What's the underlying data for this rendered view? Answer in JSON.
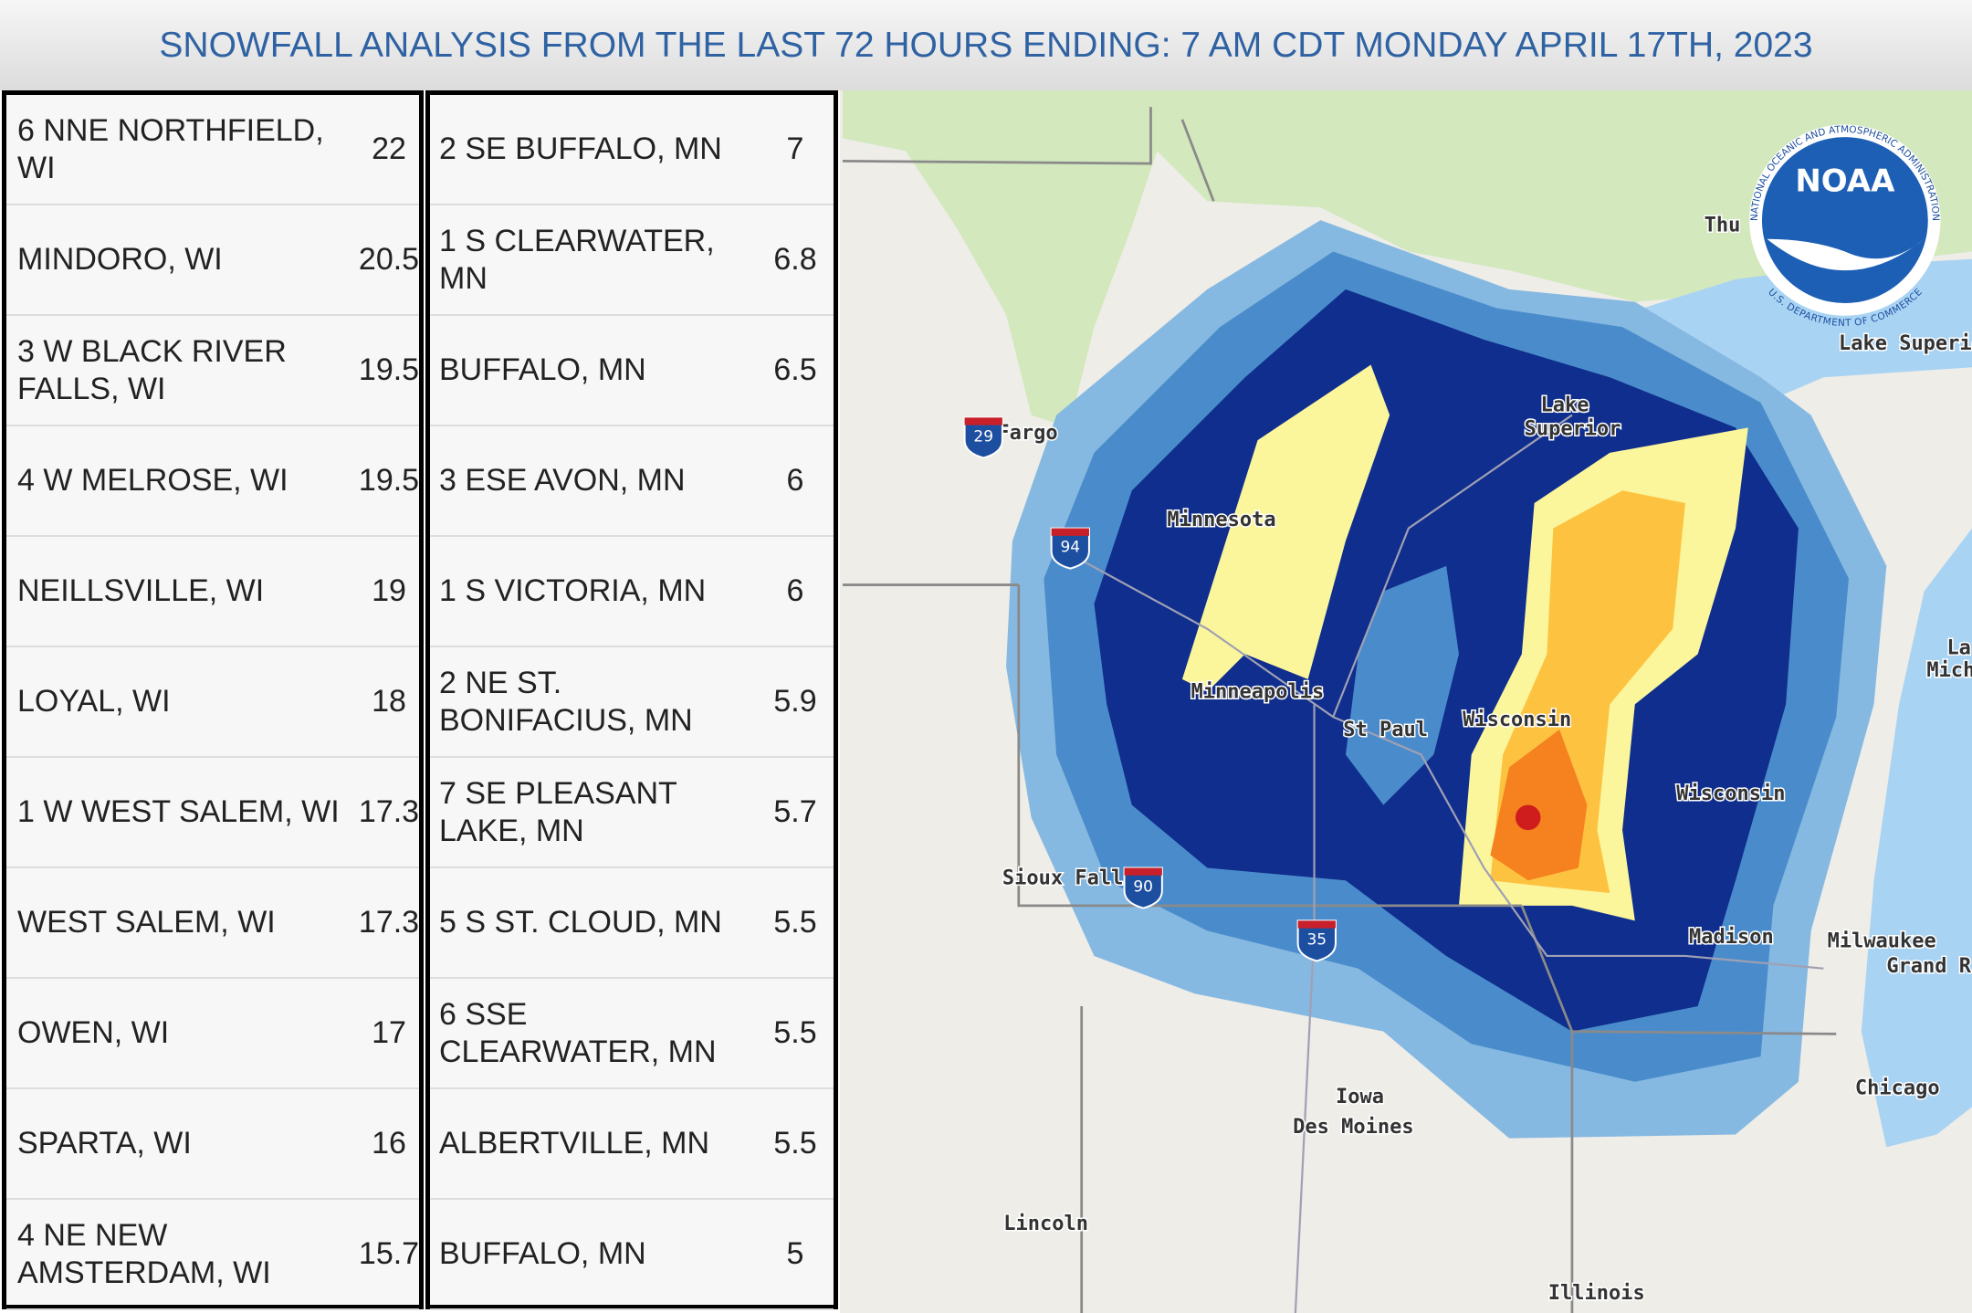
{
  "header": {
    "title": "SNOWFALL ANALYSIS FROM THE LAST 72 HOURS ENDING: 7 AM CDT MONDAY APRIL 17TH, 2023"
  },
  "table": {
    "left": [
      [
        "6 NNE NORTHFIELD, WI",
        22
      ],
      [
        "MINDORO, WI",
        20.5
      ],
      [
        "3 W BLACK RIVER FALLS, WI",
        19.5
      ],
      [
        "4 W MELROSE, WI",
        19.5
      ],
      [
        "NEILLSVILLE, WI",
        19
      ],
      [
        "LOYAL, WI",
        18
      ],
      [
        "1 W WEST SALEM, WI",
        17.3
      ],
      [
        "WEST SALEM, WI",
        17.3
      ],
      [
        "OWEN, WI",
        17
      ],
      [
        "SPARTA, WI",
        16
      ],
      [
        "4 NE NEW AMSTERDAM, WI",
        15.7
      ]
    ],
    "right": [
      [
        "2 SE BUFFALO, MN",
        7
      ],
      [
        "1 S CLEARWATER, MN",
        6.8
      ],
      [
        "BUFFALO, MN",
        6.5
      ],
      [
        "3 ESE AVON, MN",
        6
      ],
      [
        "1 S VICTORIA, MN",
        6
      ],
      [
        "2 NE ST. BONIFACIUS, MN",
        5.9
      ],
      [
        "7 SE PLEASANT LAKE, MN",
        5.7
      ],
      [
        "5 S ST. CLOUD, MN",
        5.5
      ],
      [
        "6 SSE CLEARWATER, MN",
        5.5
      ],
      [
        "ALBERTVILLE, MN",
        5.5
      ],
      [
        "BUFFALO, MN",
        5
      ]
    ]
  },
  "map": {
    "labels": [
      "Fargo",
      "Minnesota",
      "Minneapolis",
      "St Paul",
      "Wisconsin",
      "Wisconsin",
      "Lake",
      "Superior",
      "Sioux Falls",
      "Madison",
      "Milwaukee",
      "Grand R",
      "Chicago",
      "Iowa",
      "Des Moines",
      "Lincoln",
      "Illinois",
      "Thu",
      "Lake Superio",
      "La",
      "Mich"
    ],
    "highways": [
      "29",
      "94",
      "90",
      "35"
    ],
    "logo": {
      "name": "NOAA",
      "ring_top": "NATIONAL OCEANIC AND ATMOSPHERIC ADMINISTRATION",
      "ring_bottom": "U.S. DEPARTMENT OF COMMERCE"
    }
  }
}
